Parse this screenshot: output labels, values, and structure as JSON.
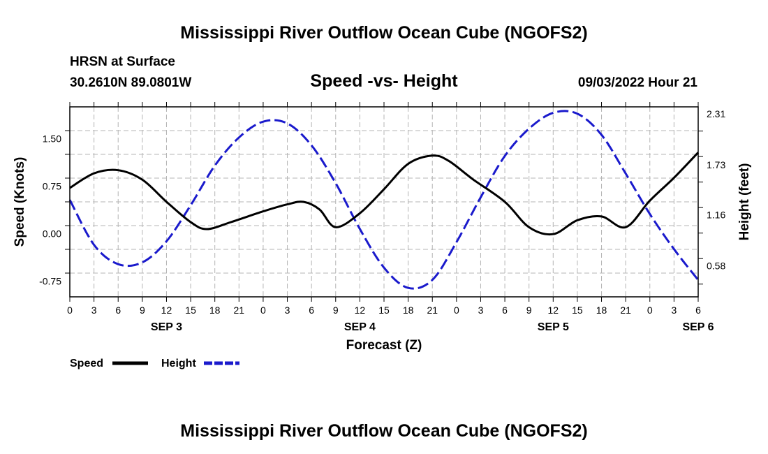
{
  "title": "Mississippi River Outflow Ocean Cube (NGOFS2)",
  "station": "HRSN at Surface",
  "coords": "30.2610N  89.0801W",
  "subtitle": "Speed -vs- Height",
  "datetime": "09/03/2022 Hour 21",
  "bottom_title": "Mississippi River Outflow Ocean Cube (NGOFS2)",
  "chart_data": {
    "type": "line",
    "title": "Speed -vs- Height",
    "xlabel": "Forecast (Z)",
    "ylabel": "Speed (Knots)",
    "y2label": "Height (feet)",
    "x_range_hours": [
      0,
      78
    ],
    "ylim": [
      -1.0,
      2.0
    ],
    "y2lim": [
      0.228,
      2.388
    ],
    "y_ticks": [
      "1.50",
      "0.75",
      "0.00",
      "-0.75"
    ],
    "y_tick_values": [
      1.5,
      0.75,
      0.0,
      -0.75
    ],
    "y2_ticks": [
      "2.31",
      "1.73",
      "1.16",
      "0.58"
    ],
    "y2_tick_values": [
      2.31,
      1.73,
      1.16,
      0.58
    ],
    "x_ticks": [
      "0",
      "3",
      "6",
      "9",
      "12",
      "15",
      "18",
      "21",
      "0",
      "3",
      "6",
      "9",
      "12",
      "15",
      "18",
      "21",
      "0",
      "3",
      "6",
      "9",
      "12",
      "15",
      "18",
      "21",
      "0",
      "3",
      "6"
    ],
    "day_labels": [
      {
        "label": "SEP 3",
        "hour": 12
      },
      {
        "label": "SEP 4",
        "hour": 36
      },
      {
        "label": "SEP 5",
        "hour": 60
      },
      {
        "label": "SEP 6",
        "hour": 78
      }
    ],
    "grid": true,
    "series": [
      {
        "name": "Speed",
        "axis": "left",
        "color": "#000000",
        "dash": "solid",
        "x": [
          0,
          3,
          6,
          9,
          12,
          15,
          17,
          20,
          24,
          27,
          29,
          31,
          33,
          36,
          39,
          42,
          45,
          47,
          50,
          54,
          57,
          60,
          63,
          66,
          69,
          72,
          75,
          78
        ],
        "values": [
          0.72,
          0.95,
          1.0,
          0.85,
          0.5,
          0.18,
          0.07,
          0.18,
          0.35,
          0.46,
          0.5,
          0.38,
          0.1,
          0.32,
          0.7,
          1.1,
          1.23,
          1.15,
          0.86,
          0.5,
          0.1,
          -0.01,
          0.21,
          0.27,
          0.1,
          0.52,
          0.88,
          1.28
        ]
      },
      {
        "name": "Height",
        "axis": "right",
        "color": "#1a1acc",
        "dash": "dashed",
        "x": [
          0,
          3,
          6,
          9,
          12,
          15,
          18,
          21,
          24,
          27,
          30,
          33,
          36,
          39,
          42,
          45,
          48,
          51,
          54,
          57,
          60,
          63,
          66,
          69,
          72,
          75,
          78
        ],
        "values": [
          1.33,
          0.82,
          0.6,
          0.62,
          0.86,
          1.27,
          1.72,
          2.04,
          2.22,
          2.2,
          1.95,
          1.52,
          1.0,
          0.56,
          0.33,
          0.42,
          0.85,
          1.36,
          1.83,
          2.14,
          2.32,
          2.31,
          2.07,
          1.63,
          1.17,
          0.77,
          0.42
        ]
      }
    ],
    "legend": [
      {
        "label": "Speed",
        "color": "#000000",
        "dash": "solid"
      },
      {
        "label": "Height",
        "color": "#1a1acc",
        "dash": "dashed"
      }
    ],
    "legend_position": "bottom-left"
  }
}
